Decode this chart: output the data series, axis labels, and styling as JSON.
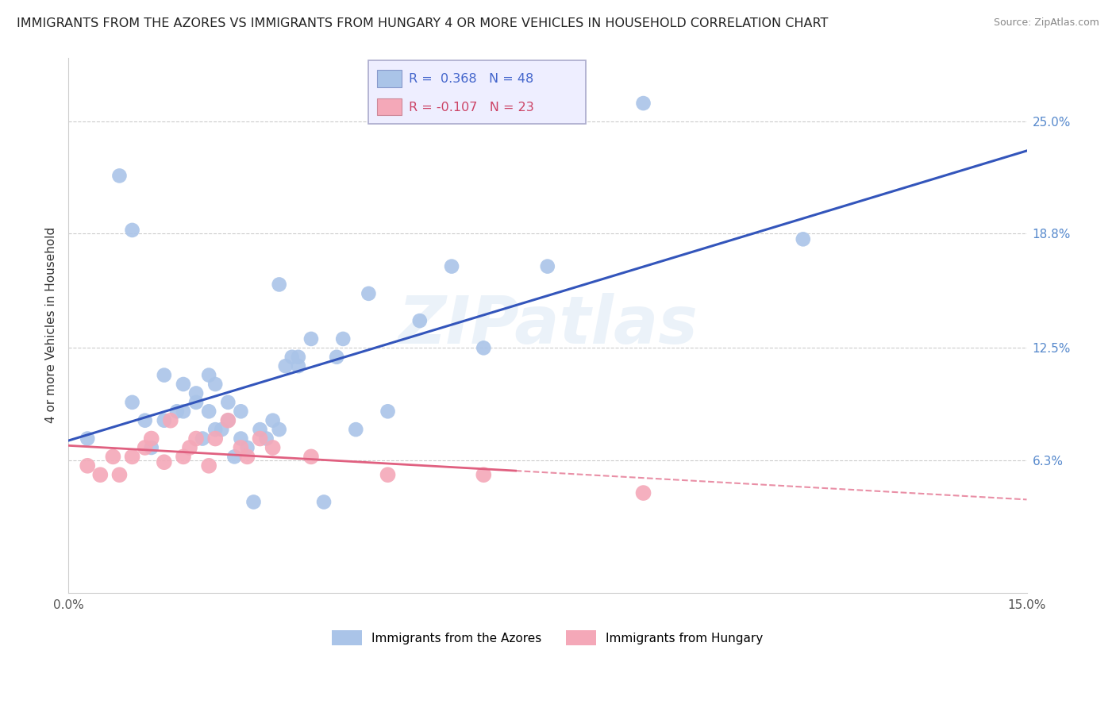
{
  "title": "IMMIGRANTS FROM THE AZORES VS IMMIGRANTS FROM HUNGARY 4 OR MORE VEHICLES IN HOUSEHOLD CORRELATION CHART",
  "source": "Source: ZipAtlas.com",
  "ylabel": "4 or more Vehicles in Household",
  "xlim": [
    0.0,
    0.15
  ],
  "ylim": [
    -0.01,
    0.285
  ],
  "ytick_labels": [
    "6.3%",
    "12.5%",
    "18.8%",
    "25.0%"
  ],
  "ytick_positions": [
    0.063,
    0.125,
    0.188,
    0.25
  ],
  "xtick_positions": [
    0.0,
    0.05,
    0.1,
    0.15
  ],
  "xtick_labels": [
    "0.0%",
    "",
    "",
    "15.0%"
  ],
  "legend_box_color": "#eeeeff",
  "legend_border_color": "#aaaacc",
  "azores_color": "#aac4e8",
  "hungary_color": "#f4a8b8",
  "azores_line_color": "#3355bb",
  "hungary_line_color": "#e06080",
  "R_azores": 0.368,
  "N_azores": 48,
  "R_hungary": -0.107,
  "N_hungary": 23,
  "watermark": "ZIPatlas",
  "azores_x": [
    0.003,
    0.008,
    0.01,
    0.01,
    0.012,
    0.013,
    0.015,
    0.015,
    0.017,
    0.018,
    0.018,
    0.02,
    0.02,
    0.021,
    0.022,
    0.022,
    0.023,
    0.023,
    0.024,
    0.025,
    0.025,
    0.026,
    0.027,
    0.027,
    0.028,
    0.029,
    0.03,
    0.031,
    0.032,
    0.033,
    0.033,
    0.034,
    0.035,
    0.036,
    0.036,
    0.038,
    0.04,
    0.042,
    0.043,
    0.045,
    0.047,
    0.05,
    0.055,
    0.06,
    0.065,
    0.075,
    0.09,
    0.115
  ],
  "azores_y": [
    0.075,
    0.22,
    0.19,
    0.095,
    0.085,
    0.07,
    0.11,
    0.085,
    0.09,
    0.105,
    0.09,
    0.095,
    0.1,
    0.075,
    0.09,
    0.11,
    0.08,
    0.105,
    0.08,
    0.095,
    0.085,
    0.065,
    0.075,
    0.09,
    0.07,
    0.04,
    0.08,
    0.075,
    0.085,
    0.08,
    0.16,
    0.115,
    0.12,
    0.12,
    0.115,
    0.13,
    0.04,
    0.12,
    0.13,
    0.08,
    0.155,
    0.09,
    0.14,
    0.17,
    0.125,
    0.17,
    0.26,
    0.185
  ],
  "hungary_x": [
    0.003,
    0.005,
    0.007,
    0.008,
    0.01,
    0.012,
    0.013,
    0.015,
    0.016,
    0.018,
    0.019,
    0.02,
    0.022,
    0.023,
    0.025,
    0.027,
    0.028,
    0.03,
    0.032,
    0.038,
    0.05,
    0.065,
    0.09
  ],
  "hungary_y": [
    0.06,
    0.055,
    0.065,
    0.055,
    0.065,
    0.07,
    0.075,
    0.062,
    0.085,
    0.065,
    0.07,
    0.075,
    0.06,
    0.075,
    0.085,
    0.07,
    0.065,
    0.075,
    0.07,
    0.065,
    0.055,
    0.055,
    0.045
  ]
}
